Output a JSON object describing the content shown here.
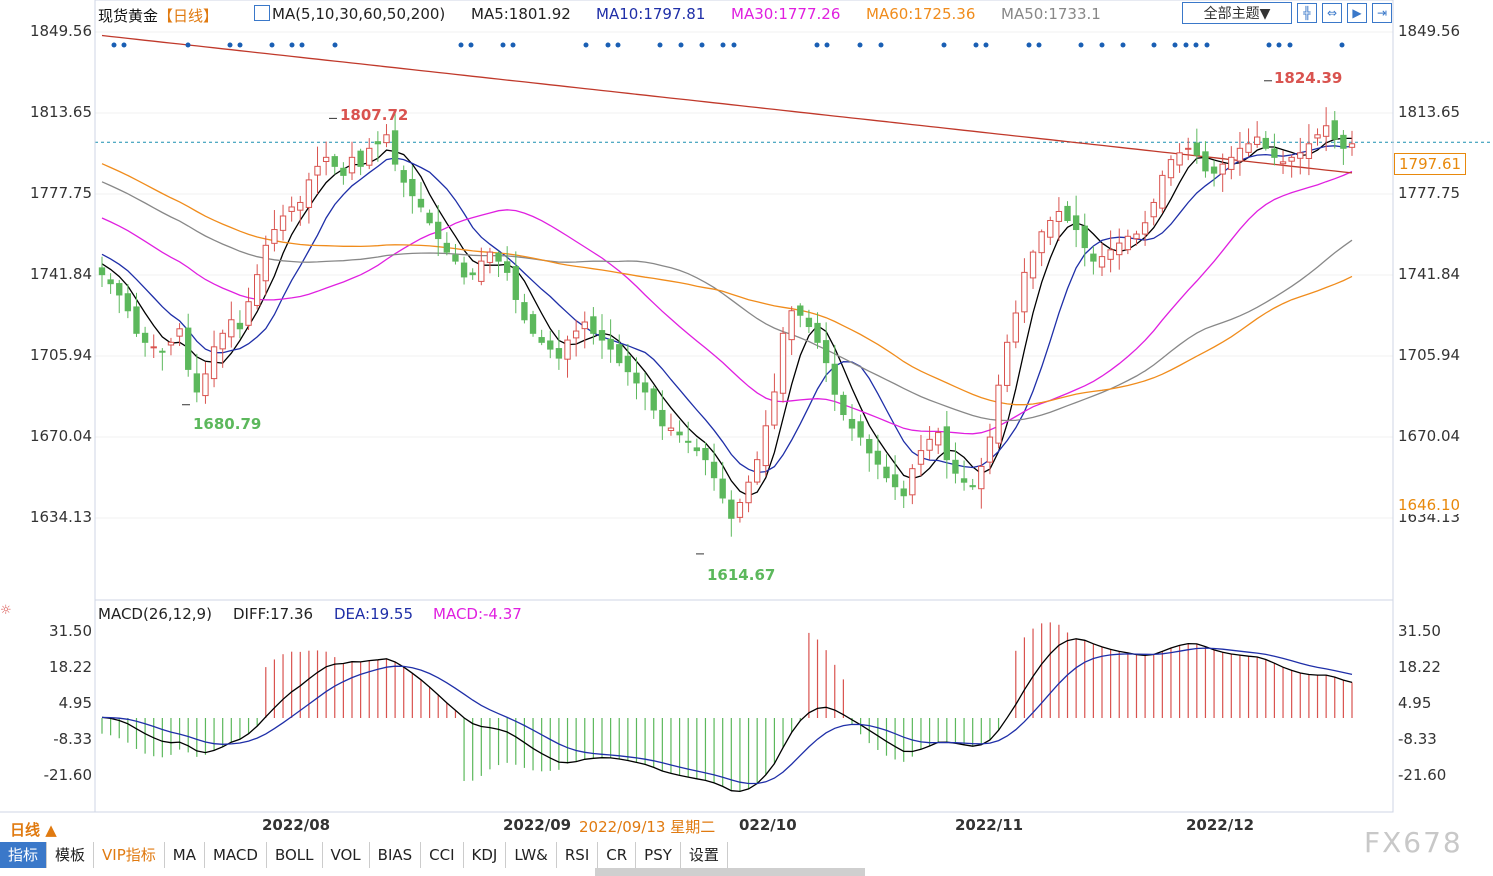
{
  "header": {
    "title": "现货黄金",
    "period": "【日线】",
    "ma_params": "MA(5,10,30,60,50,200)",
    "ma5": "MA5:1801.92",
    "ma10": "MA10:1797.81",
    "ma30": "MA30:1777.26",
    "ma60": "MA60:1725.36",
    "ma50": "MA50:1733.1",
    "theme_button": "全部主题▼"
  },
  "macd_header": {
    "params": "MACD(26,12,9)",
    "diff": "DIFF:17.36",
    "dea": "DEA:19.55",
    "macd": "MACD:-4.37"
  },
  "price_axis": [
    "1849.56",
    "1813.65",
    "1777.75",
    "1741.84",
    "1705.94",
    "1670.04",
    "1634.13"
  ],
  "macd_axis": [
    "31.50",
    "18.22",
    "4.95",
    "-8.33",
    "-21.60"
  ],
  "dates": [
    "2022/08",
    "2022/09",
    "2022/10",
    "2022/11",
    "2022/12"
  ],
  "tooltip_date": "2022/09/13 星期二",
  "period_switch": "日线 ▲",
  "current_price": "1797.61",
  "low_marker": "1646.10",
  "annotations": {
    "high1": "1807.72",
    "low1": "1680.79",
    "low2": "1614.67",
    "high2": "1824.39"
  },
  "tabs": [
    "指标",
    "模板",
    "VIP指标",
    "MA",
    "MACD",
    "BOLL",
    "VOL",
    "BIAS",
    "CCI",
    "KDJ",
    "LW&",
    "RSI",
    "CR",
    "PSY",
    "设置"
  ],
  "watermark": "FX678",
  "colors": {
    "up": "#d9534f",
    "down": "#5cb85c",
    "ma5": "#000000",
    "ma10": "#1f2fa8",
    "ma30": "#e020e0",
    "ma60": "#f08c1c",
    "ma50": "#888888",
    "ma200": "#c0392b",
    "diff": "#000000",
    "dea": "#1f2fa8"
  },
  "chart_data": {
    "type": "candlestick",
    "title": "现货黄金 日线",
    "price_range": [
      1614.67,
      1849.56
    ],
    "series": [
      {
        "name": "MA5",
        "value": 1801.92
      },
      {
        "name": "MA10",
        "value": 1797.81
      },
      {
        "name": "MA30",
        "value": 1777.26
      },
      {
        "name": "MA60",
        "value": 1725.36
      },
      {
        "name": "MA50",
        "value": 1733.1
      }
    ],
    "extremes": {
      "high_aug": 1807.72,
      "low_jul": 1680.79,
      "low_sep": 1614.67,
      "high_dec": 1824.39
    },
    "closes": [
      1742,
      1738,
      1733,
      1726,
      1716,
      1712,
      1710,
      1708,
      1712,
      1718,
      1700,
      1690,
      1698,
      1710,
      1716,
      1722,
      1718,
      1730,
      1742,
      1755,
      1762,
      1768,
      1772,
      1774,
      1784,
      1790,
      1794,
      1790,
      1786,
      1794,
      1790,
      1798,
      1800,
      1804,
      1791,
      1783,
      1777,
      1772,
      1765,
      1758,
      1752,
      1748,
      1741,
      1742,
      1748,
      1752,
      1748,
      1743,
      1731,
      1722,
      1716,
      1712,
      1709,
      1705,
      1713,
      1717,
      1721,
      1716,
      1713,
      1709,
      1703,
      1699,
      1694,
      1690,
      1682,
      1675,
      1674,
      1671,
      1668,
      1664,
      1660,
      1652,
      1643,
      1634,
      1641,
      1650,
      1660,
      1675,
      1690,
      1716,
      1726,
      1724,
      1719,
      1712,
      1703,
      1689,
      1680,
      1674,
      1670,
      1663,
      1658,
      1652,
      1648,
      1644,
      1656,
      1664,
      1669,
      1672,
      1660,
      1654,
      1650,
      1648,
      1657,
      1670,
      1693,
      1712,
      1725,
      1743,
      1752,
      1761,
      1766,
      1770,
      1766,
      1762,
      1754,
      1748,
      1750,
      1753,
      1756,
      1759,
      1760,
      1765,
      1774,
      1786,
      1793,
      1796,
      1798,
      1795,
      1788,
      1787,
      1791,
      1794,
      1798,
      1800,
      1803,
      1798,
      1794,
      1792,
      1794,
      1796,
      1800,
      1804,
      1808,
      1802,
      1798,
      1800
    ],
    "macd": {
      "diff_last": 17.36,
      "dea_last": 19.55,
      "hist_last": -4.37,
      "axis": [
        31.5,
        18.22,
        4.95,
        -8.33,
        -21.6
      ]
    }
  }
}
